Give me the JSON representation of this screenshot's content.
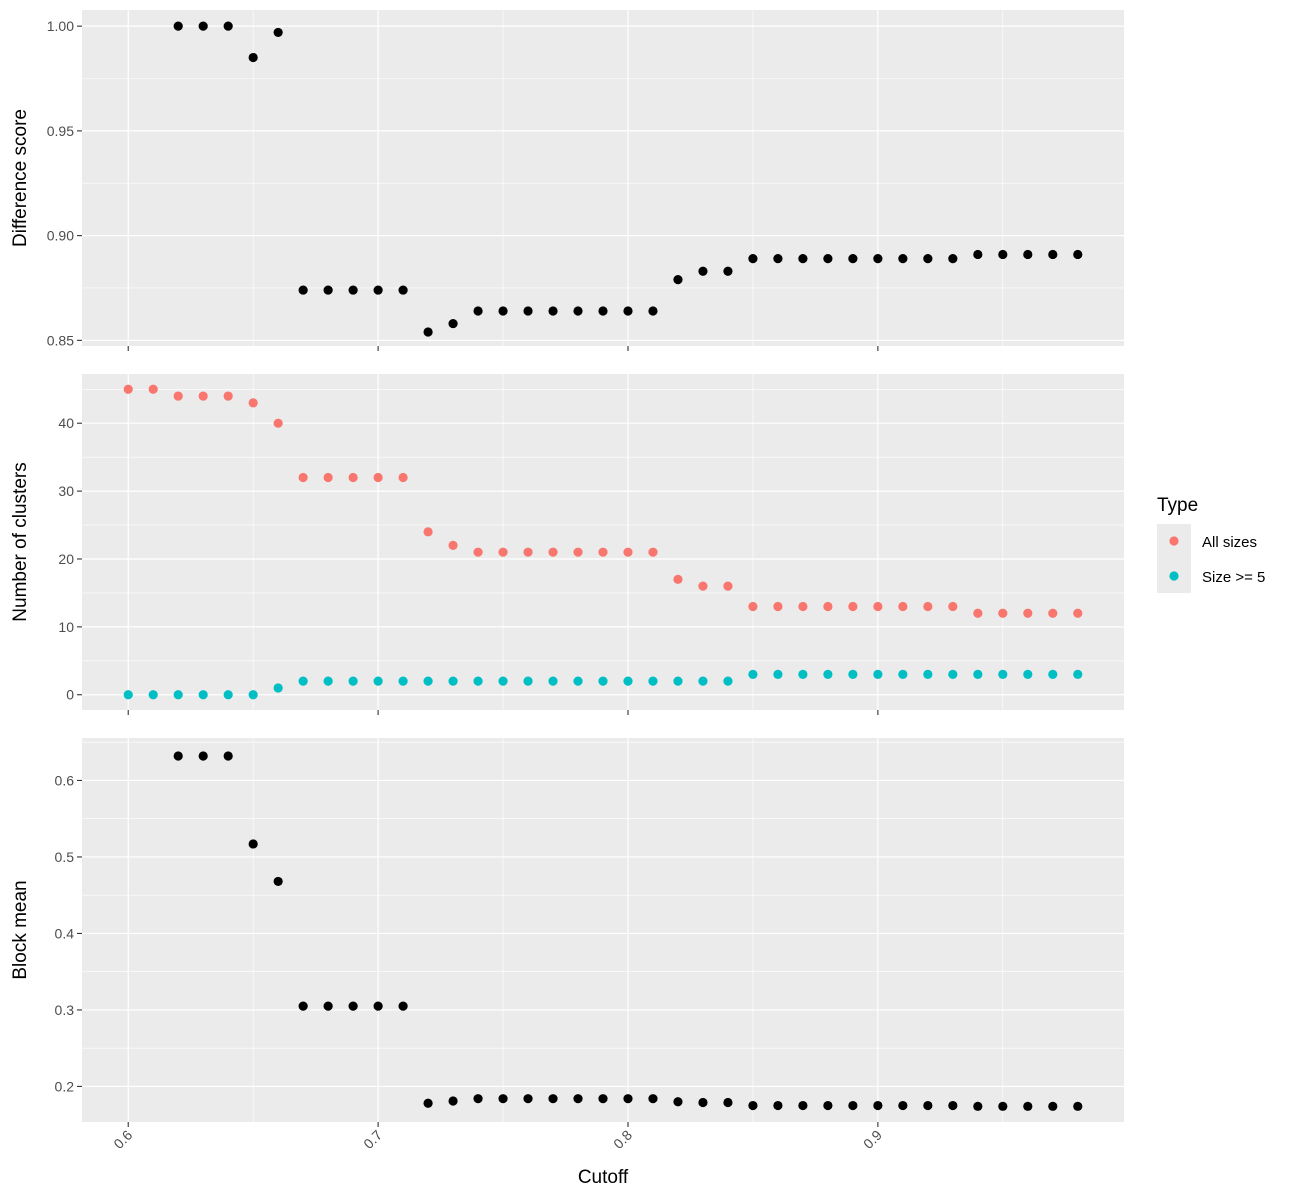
{
  "chart_data": {
    "type": "scatter",
    "x": [
      0.6,
      0.61,
      0.62,
      0.63,
      0.64,
      0.65,
      0.66,
      0.67,
      0.68,
      0.69,
      0.7,
      0.71,
      0.72,
      0.73,
      0.74,
      0.75,
      0.76,
      0.77,
      0.78,
      0.79,
      0.8,
      0.81,
      0.82,
      0.83,
      0.84,
      0.85,
      0.86,
      0.87,
      0.88,
      0.89,
      0.9,
      0.91,
      0.92,
      0.93,
      0.94,
      0.95,
      0.96,
      0.97,
      0.98
    ],
    "xlabel": "Cutoff",
    "xlim": [
      0.5815,
      0.9985
    ],
    "x_ticks": [
      0.6,
      0.7,
      0.8,
      0.9
    ],
    "x_tick_labels": [
      "0.6",
      "0.7",
      "0.8",
      "0.9"
    ],
    "grid": true,
    "panels": [
      {
        "ylabel": "Difference score",
        "ylim": [
          0.8473,
          1.0077
        ],
        "y_ticks": [
          0.85,
          0.9,
          0.95,
          1.0
        ],
        "y_tick_labels": [
          "0.85",
          "0.90",
          "0.95",
          "1.00"
        ],
        "series": [
          {
            "color": "#000000",
            "values": [
              null,
              null,
              1.0,
              1.0,
              1.0,
              0.985,
              0.997,
              0.874,
              0.874,
              0.874,
              0.874,
              0.874,
              0.854,
              0.858,
              0.864,
              0.864,
              0.864,
              0.864,
              0.864,
              0.864,
              0.864,
              0.864,
              0.879,
              0.883,
              0.883,
              0.889,
              0.889,
              0.889,
              0.889,
              0.889,
              0.889,
              0.889,
              0.889,
              0.889,
              0.891,
              0.891,
              0.891,
              0.891,
              0.891
            ]
          }
        ]
      },
      {
        "ylabel": "Number of clusters",
        "ylim": [
          -2.25,
          47.25
        ],
        "y_ticks": [
          0,
          10,
          20,
          30,
          40
        ],
        "y_tick_labels": [
          "0",
          "10",
          "20",
          "30",
          "40"
        ],
        "series": [
          {
            "name": "All sizes",
            "color": "#F8766D",
            "values": [
              45,
              45,
              44,
              44,
              44,
              43,
              40,
              32,
              32,
              32,
              32,
              32,
              24,
              22,
              21,
              21,
              21,
              21,
              21,
              21,
              21,
              21,
              17,
              16,
              16,
              13,
              13,
              13,
              13,
              13,
              13,
              13,
              13,
              13,
              12,
              12,
              12,
              12,
              12
            ]
          },
          {
            "name": "Size >= 5",
            "color": "#00BFC4",
            "values": [
              0,
              0,
              0,
              0,
              0,
              0,
              1,
              2,
              2,
              2,
              2,
              2,
              2,
              2,
              2,
              2,
              2,
              2,
              2,
              2,
              2,
              2,
              2,
              2,
              2,
              3,
              3,
              3,
              3,
              3,
              3,
              3,
              3,
              3,
              3,
              3,
              3,
              3,
              3
            ]
          }
        ]
      },
      {
        "ylabel": "Block mean",
        "ylim": [
          0.1535,
          0.6555
        ],
        "y_ticks": [
          0.2,
          0.3,
          0.4,
          0.5,
          0.6
        ],
        "y_tick_labels": [
          "0.2",
          "0.3",
          "0.4",
          "0.5",
          "0.6"
        ],
        "series": [
          {
            "color": "#000000",
            "values": [
              null,
              null,
              0.632,
              0.632,
              0.632,
              0.517,
              0.468,
              0.305,
              0.305,
              0.305,
              0.305,
              0.305,
              0.178,
              0.181,
              0.184,
              0.184,
              0.184,
              0.184,
              0.184,
              0.184,
              0.184,
              0.184,
              0.18,
              0.179,
              0.179,
              0.175,
              0.175,
              0.175,
              0.175,
              0.175,
              0.175,
              0.175,
              0.175,
              0.175,
              0.174,
              0.174,
              0.174,
              0.174,
              0.174
            ]
          }
        ]
      }
    ],
    "legend": {
      "title": "Type",
      "placement": "right",
      "entries": [
        "All sizes",
        "Size >= 5"
      ]
    }
  },
  "colors": {
    "panel_background": "#EBEBEB",
    "grid_major": "#FFFFFF",
    "tick_text": "#4D4D4D",
    "tick_mark": "#333333"
  }
}
